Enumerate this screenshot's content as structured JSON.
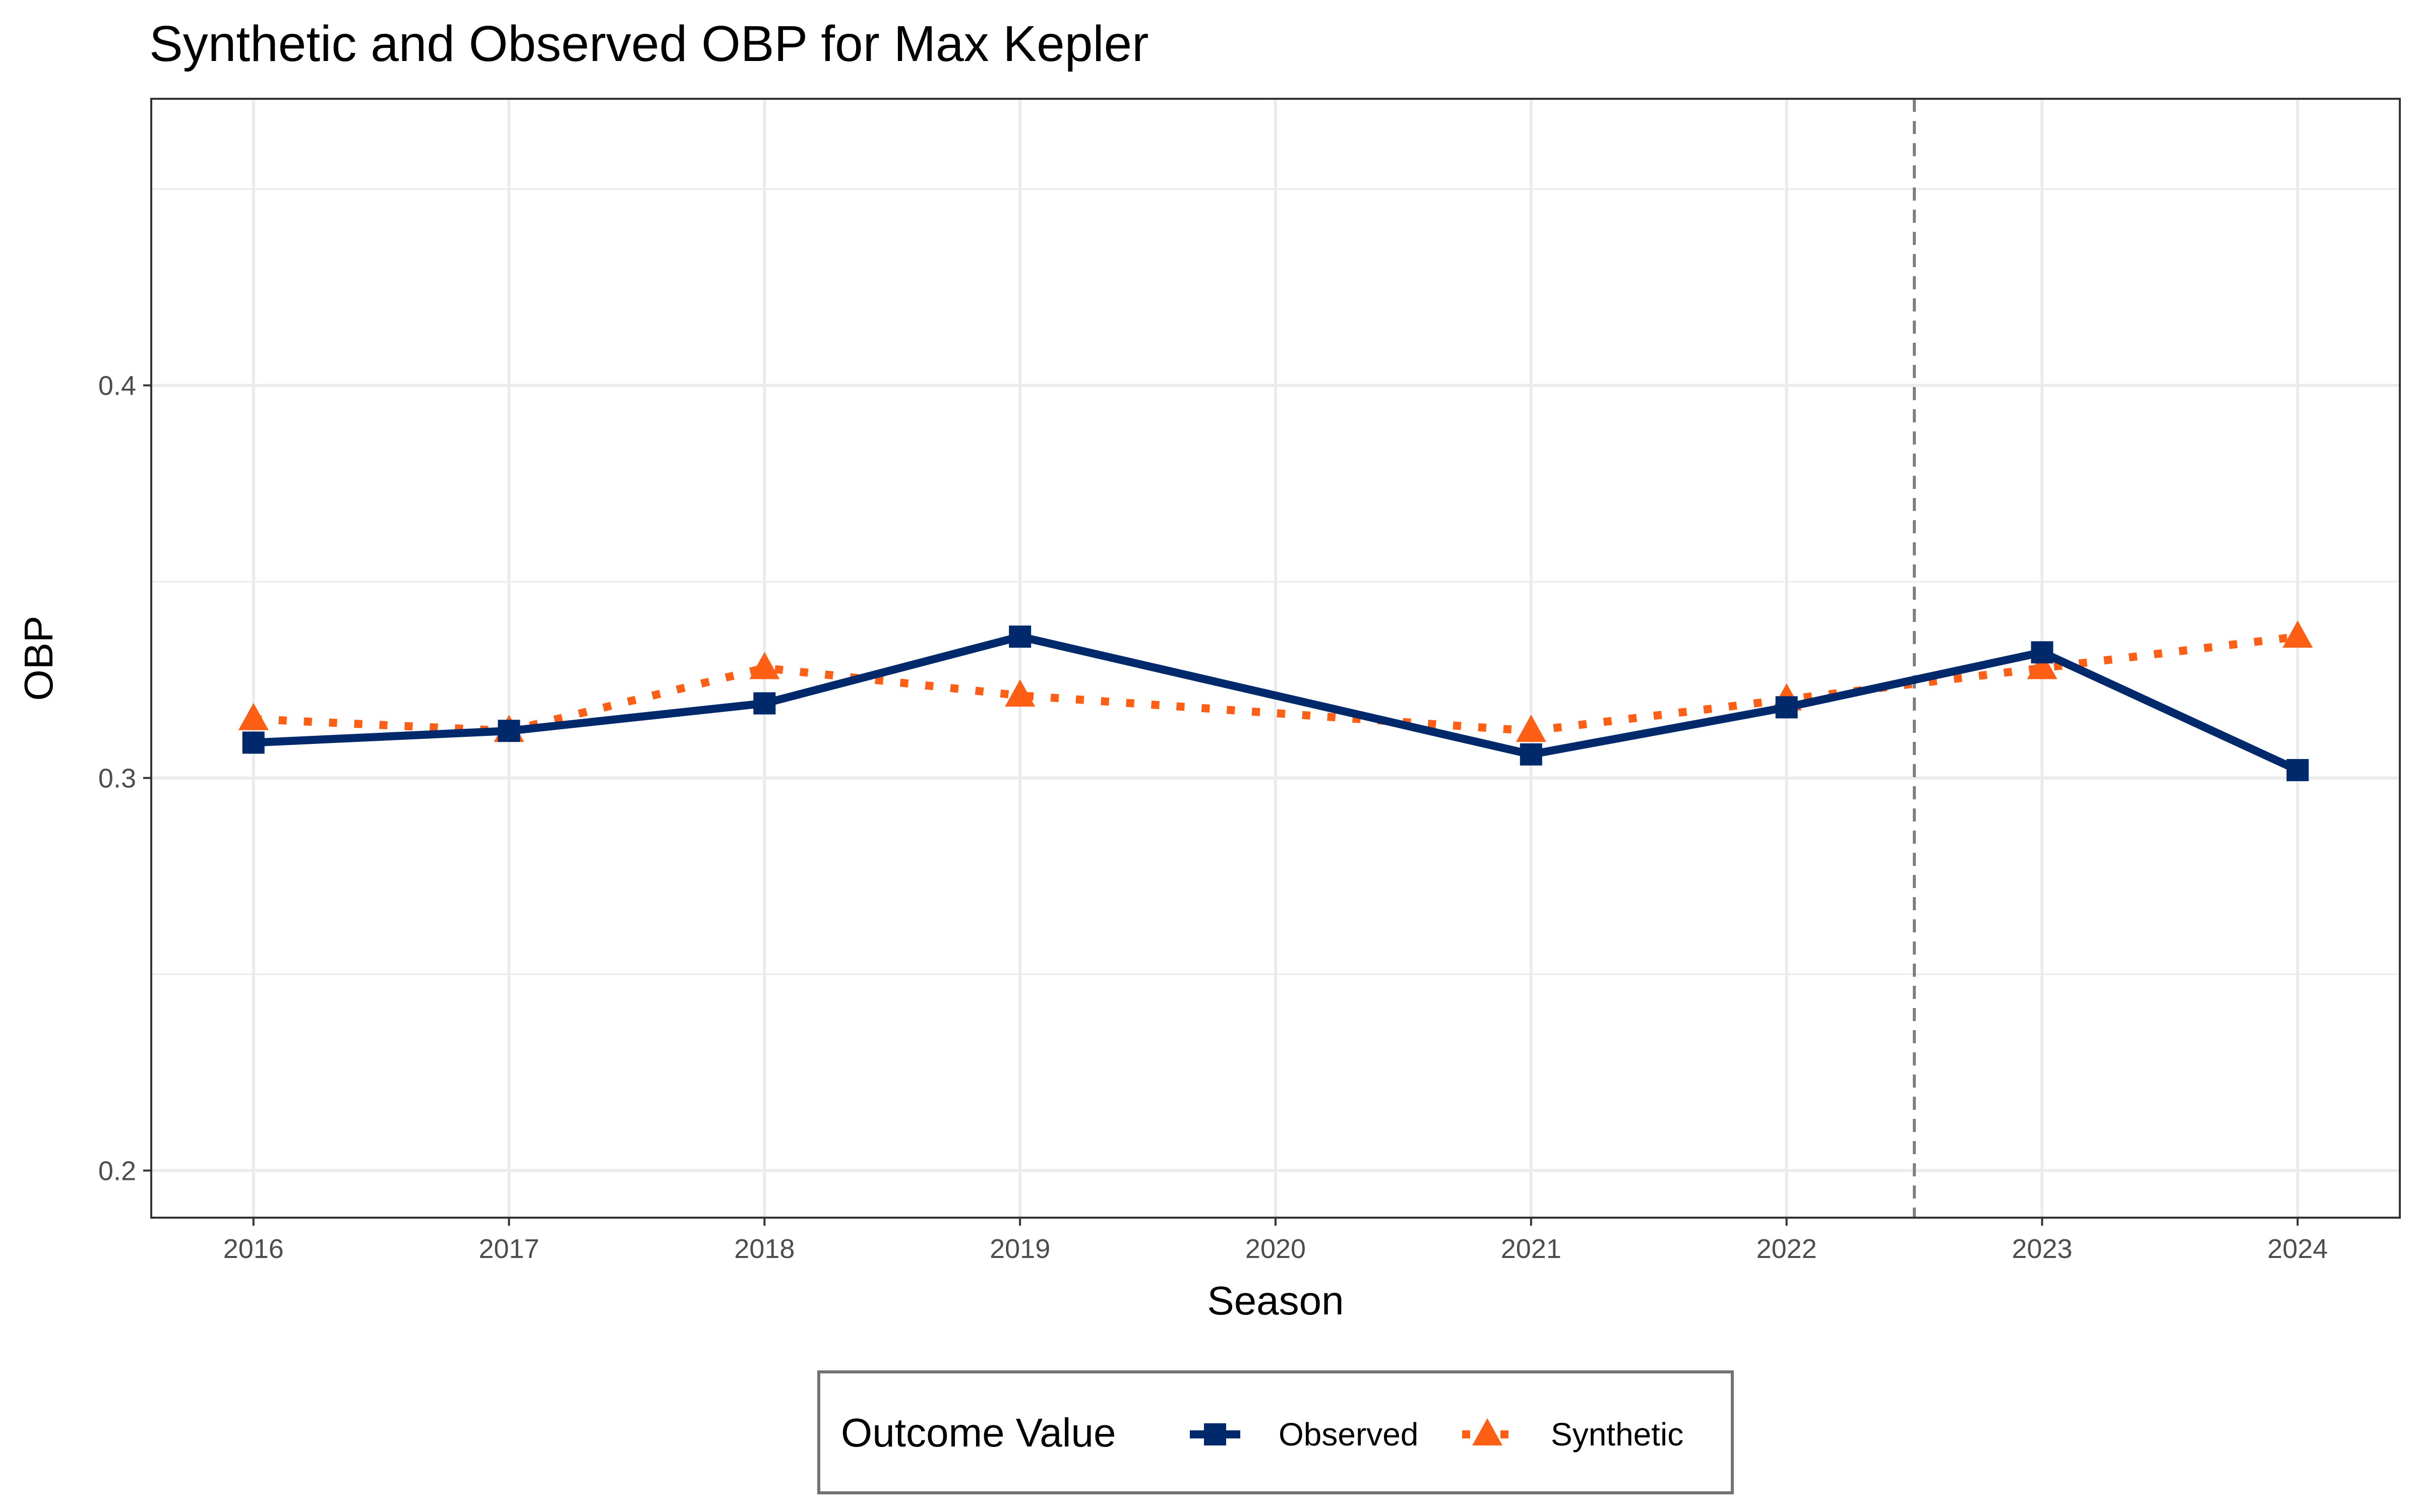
{
  "chart_data": {
    "type": "line",
    "title": "Synthetic and Observed OBP for Max Kepler",
    "xlabel": "Season",
    "ylabel": "OBP",
    "x": [
      2016,
      2017,
      2018,
      2019,
      2020,
      2021,
      2022,
      2023,
      2024
    ],
    "x_tick_labels": [
      "2016",
      "2017",
      "2018",
      "2019",
      "2020",
      "2021",
      "2022",
      "2023",
      "2024"
    ],
    "y_tick_labels": [
      "0.2",
      "0.3",
      "0.4"
    ],
    "y_ticks": [
      0.2,
      0.3,
      0.4
    ],
    "ylim": [
      0.188,
      0.473
    ],
    "xlim": [
      2015.6,
      2024.4
    ],
    "grid": true,
    "legend_position": "bottom",
    "legend_title": "Outcome Value",
    "vline": {
      "x": 2022.5,
      "style": "dashed",
      "color": "#7f7f7f"
    },
    "series": [
      {
        "name": "Observed",
        "color": "#00296b",
        "line_style": "solid",
        "marker": "square",
        "points": [
          [
            2016,
            0.309
          ],
          [
            2017,
            0.312
          ],
          [
            2018,
            0.319
          ],
          [
            2019,
            0.336
          ],
          [
            2021,
            0.306
          ],
          [
            2022,
            0.318
          ],
          [
            2023,
            0.332
          ],
          [
            2024,
            0.302
          ]
        ]
      },
      {
        "name": "Synthetic",
        "color": "#ff5f15",
        "line_style": "dotted",
        "marker": "triangle",
        "points": [
          [
            2016,
            0.315
          ],
          [
            2017,
            0.312
          ],
          [
            2018,
            0.328
          ],
          [
            2019,
            0.321
          ],
          [
            2021,
            0.312
          ],
          [
            2022,
            0.32
          ],
          [
            2023,
            0.328
          ],
          [
            2024,
            0.336
          ]
        ]
      }
    ]
  }
}
